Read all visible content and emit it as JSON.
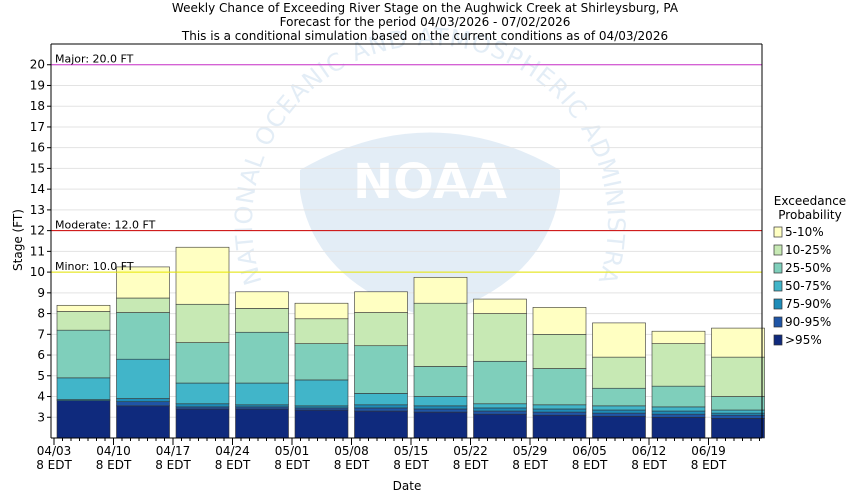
{
  "chart_data": {
    "type": "bar",
    "stacked": true,
    "title_lines": [
      "Weekly Chance of Exceeding River Stage on the Aughwick Creek at Shirleysburg, PA",
      "Forecast for the period 04/03/2026 - 07/02/2026",
      "This is a conditional simulation based on the current conditions as of 04/03/2026"
    ],
    "xlabel": "Date",
    "ylabel": "Stage (FT)",
    "ylim": [
      2,
      21
    ],
    "yticks": [
      3,
      4,
      5,
      6,
      7,
      8,
      9,
      10,
      11,
      12,
      13,
      14,
      15,
      16,
      17,
      18,
      19,
      20
    ],
    "xtick_labels": [
      {
        "date": "04/03",
        "time": "8 EDT"
      },
      {
        "date": "04/10",
        "time": "8 EDT"
      },
      {
        "date": "04/17",
        "time": "8 EDT"
      },
      {
        "date": "04/24",
        "time": "8 EDT"
      },
      {
        "date": "05/01",
        "time": "8 EDT"
      },
      {
        "date": "05/08",
        "time": "8 EDT"
      },
      {
        "date": "05/15",
        "time": "8 EDT"
      },
      {
        "date": "05/22",
        "time": "8 EDT"
      },
      {
        "date": "05/29",
        "time": "8 EDT"
      },
      {
        "date": "06/05",
        "time": "8 EDT"
      },
      {
        "date": "06/12",
        "time": "8 EDT"
      },
      {
        "date": "06/19",
        "time": "8 EDT"
      }
    ],
    "flood_levels": [
      {
        "label": "Major: 20.0 FT",
        "value": 20.0,
        "color": "#cc33cc"
      },
      {
        "label": "Moderate: 12.0 FT",
        "value": 12.0,
        "color": "#cc0000"
      },
      {
        "label": "Minor: 10.0 FT",
        "value": 10.0,
        "color": "#e6e600"
      }
    ],
    "legend_title": [
      "Exceedance",
      "Probability"
    ],
    "legend_position": "right",
    "grid": "horizontal",
    "series": [
      {
        "name": ">95%",
        "color": "#0f2a7d"
      },
      {
        "name": "90-95%",
        "color": "#1f55a6"
      },
      {
        "name": "75-90%",
        "color": "#1e8cb8"
      },
      {
        "name": "50-75%",
        "color": "#41b5c9"
      },
      {
        "name": "25-50%",
        "color": "#7fcfbb"
      },
      {
        "name": "10-25%",
        "color": "#c7e9b4"
      },
      {
        "name": "5-10%",
        "color": "#ffffc2"
      }
    ],
    "weeks": [
      {
        "bottom": 2.0,
        "levels": [
          3.8,
          3.8,
          3.85,
          4.9,
          7.2,
          8.1,
          8.4
        ]
      },
      {
        "bottom": 2.0,
        "levels": [
          3.55,
          3.75,
          3.9,
          5.8,
          8.05,
          8.75,
          10.25
        ]
      },
      {
        "bottom": 2.0,
        "levels": [
          3.4,
          3.5,
          3.65,
          4.65,
          6.6,
          8.45,
          11.2
        ]
      },
      {
        "bottom": 2.0,
        "levels": [
          3.4,
          3.5,
          3.6,
          4.65,
          7.1,
          8.25,
          9.05
        ]
      },
      {
        "bottom": 2.0,
        "levels": [
          3.35,
          3.45,
          3.55,
          4.8,
          6.55,
          7.75,
          8.5
        ]
      },
      {
        "bottom": 2.0,
        "levels": [
          3.3,
          3.45,
          3.6,
          4.15,
          6.45,
          8.05,
          9.05
        ]
      },
      {
        "bottom": 2.0,
        "levels": [
          3.25,
          3.4,
          3.55,
          4.0,
          5.45,
          8.5,
          9.75
        ]
      },
      {
        "bottom": 2.0,
        "levels": [
          3.15,
          3.3,
          3.45,
          3.65,
          5.7,
          8.0,
          8.7
        ]
      },
      {
        "bottom": 2.0,
        "levels": [
          3.1,
          3.25,
          3.4,
          3.6,
          5.35,
          7.0,
          8.3
        ]
      },
      {
        "bottom": 2.0,
        "levels": [
          3.05,
          3.2,
          3.35,
          3.55,
          4.4,
          5.9,
          7.55
        ]
      },
      {
        "bottom": 2.0,
        "levels": [
          3.0,
          3.15,
          3.3,
          3.5,
          4.5,
          6.55,
          7.15
        ]
      },
      {
        "bottom": 2.0,
        "levels": [
          2.95,
          3.1,
          3.2,
          3.35,
          4.0,
          5.9,
          7.3
        ]
      }
    ]
  },
  "watermark": {
    "logo_text": "NOAA",
    "arc_text": "NATIONAL OCEANIC AND ATMOSPHERIC ADMINISTRATION"
  }
}
